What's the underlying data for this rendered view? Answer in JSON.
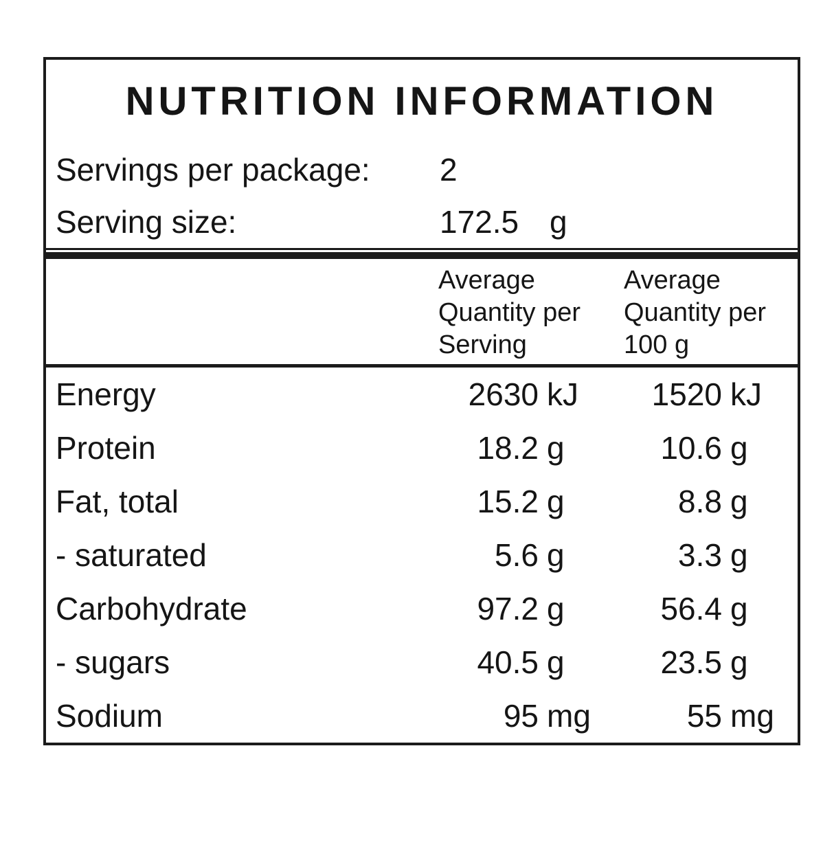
{
  "panel": {
    "title": "NUTRITION INFORMATION",
    "servings_per_package": {
      "label": "Servings per package:",
      "value": "2"
    },
    "serving_size": {
      "label": "Serving size:",
      "value": "172.5",
      "unit": "g"
    },
    "column_headers": {
      "per_serving": "Average\nQuantity per\nServing",
      "per_100g": "Average\nQuantity per\n100 g"
    },
    "rows": [
      {
        "label": "Energy",
        "per_serving_value": "2630",
        "per_serving_unit": "kJ",
        "per_100g_value": "1520",
        "per_100g_unit": "kJ"
      },
      {
        "label": "Protein",
        "per_serving_value": "18.2",
        "per_serving_unit": "g",
        "per_100g_value": "10.6",
        "per_100g_unit": "g"
      },
      {
        "label": "Fat, total",
        "per_serving_value": "15.2",
        "per_serving_unit": "g",
        "per_100g_value": "8.8",
        "per_100g_unit": "g"
      },
      {
        "label": "- saturated",
        "per_serving_value": "5.6",
        "per_serving_unit": "g",
        "per_100g_value": "3.3",
        "per_100g_unit": "g"
      },
      {
        "label": "Carbohydrate",
        "per_serving_value": "97.2",
        "per_serving_unit": "g",
        "per_100g_value": "56.4",
        "per_100g_unit": "g"
      },
      {
        "label": "- sugars",
        "per_serving_value": "40.5",
        "per_serving_unit": "g",
        "per_100g_value": "23.5",
        "per_100g_unit": "g"
      },
      {
        "label": "Sodium",
        "per_serving_value": "95",
        "per_serving_unit": "mg",
        "per_100g_value": "55",
        "per_100g_unit": "mg"
      }
    ],
    "colors": {
      "text": "#151515",
      "border": "#1b1b1b",
      "background": "#ffffff"
    }
  }
}
